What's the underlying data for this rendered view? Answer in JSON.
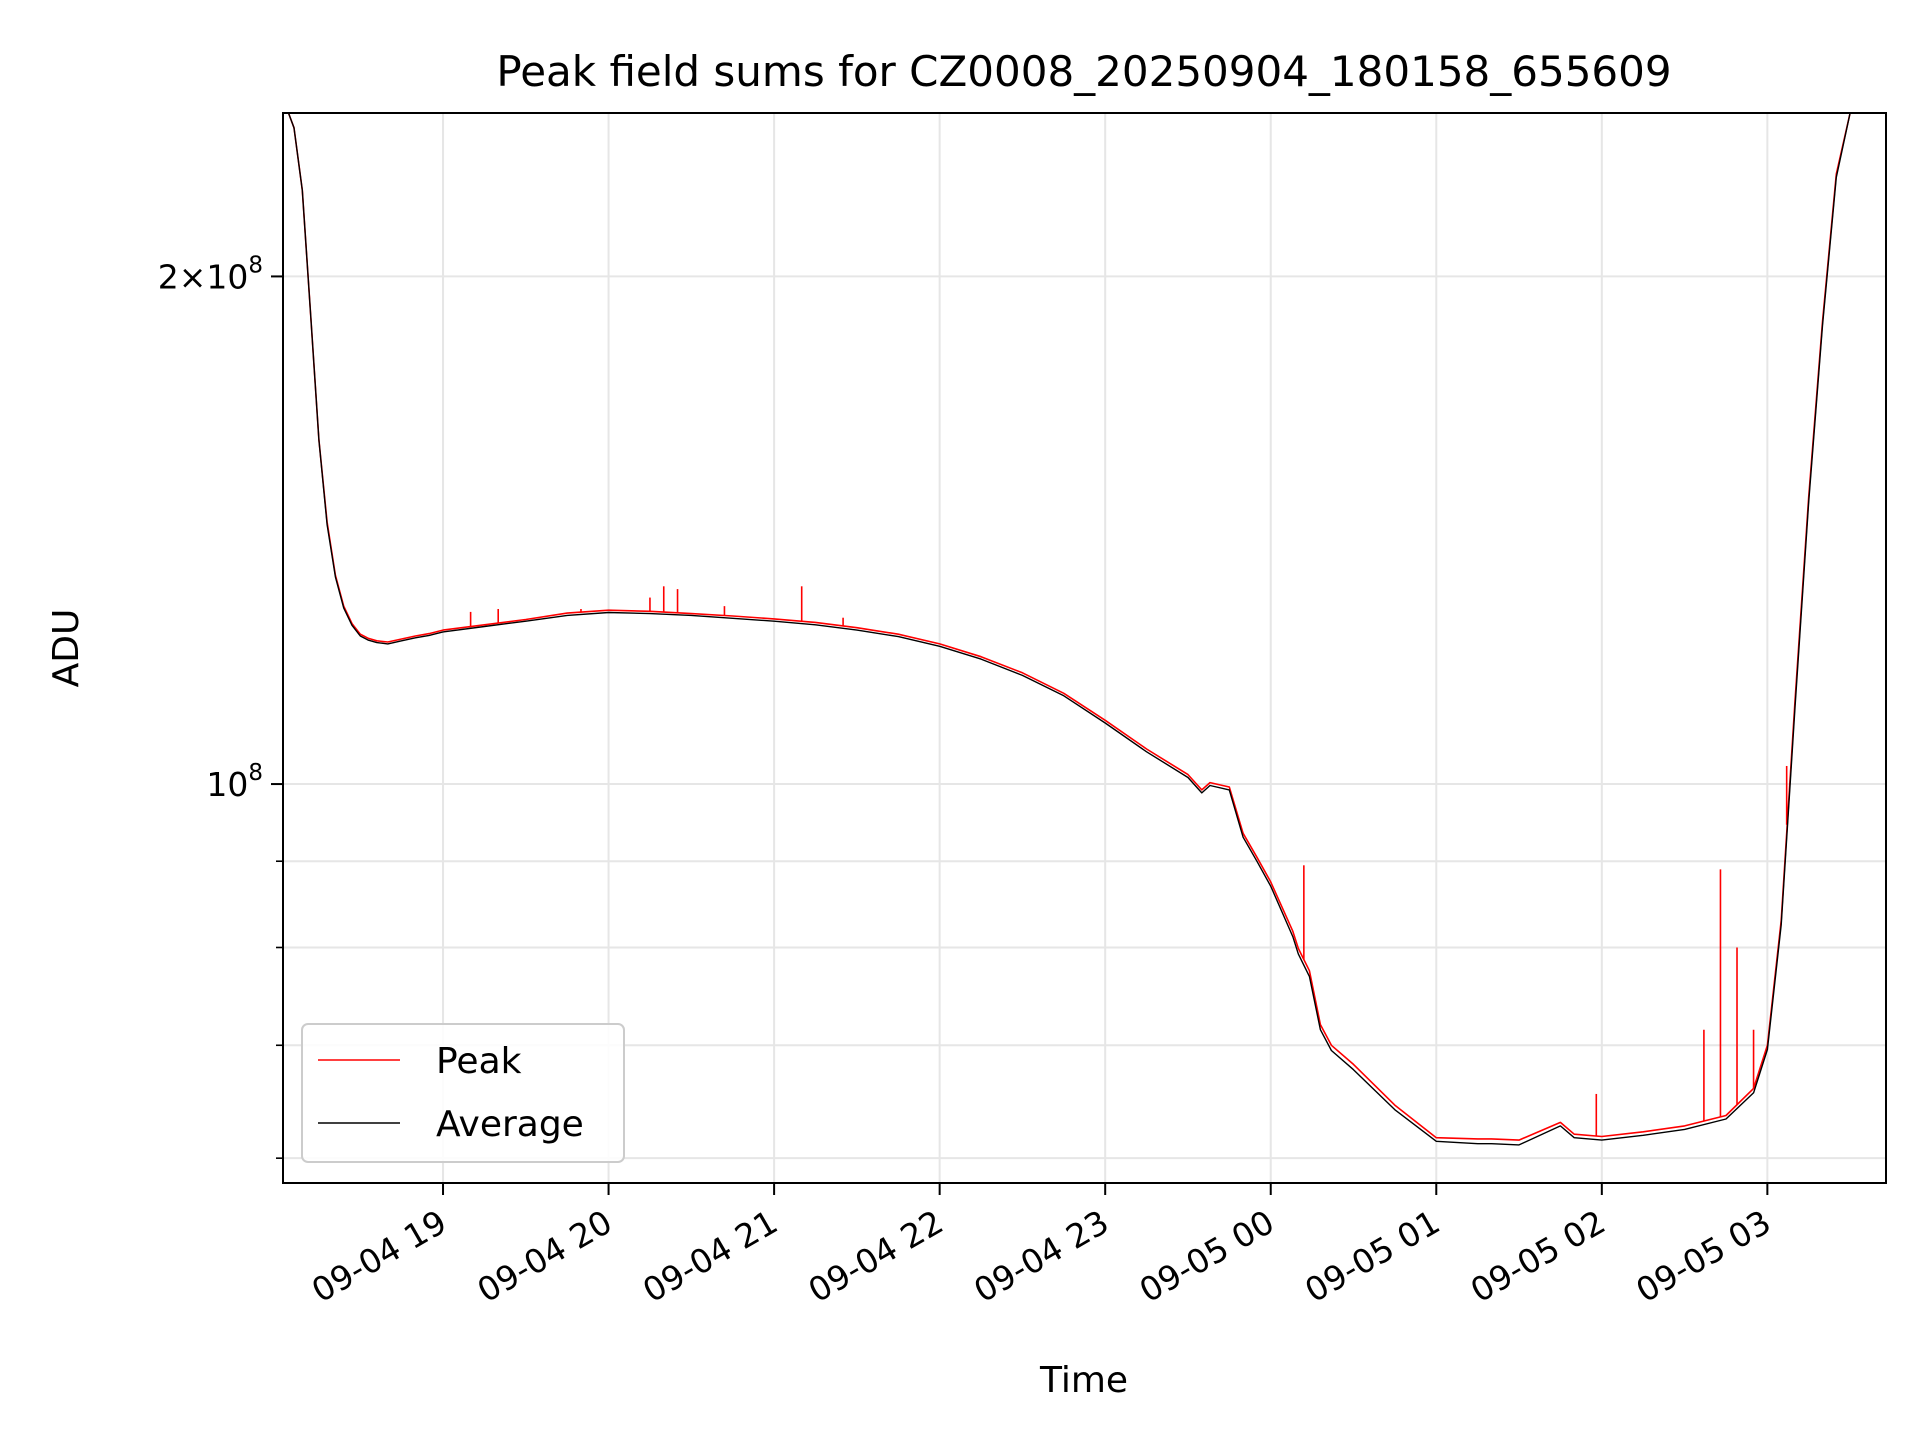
{
  "chart_data": {
    "type": "line",
    "title": "Peak field sums for CZ0008_20250904_180158_655609",
    "xlabel": "Time",
    "ylabel": "ADU",
    "yscale": "log",
    "grid": true,
    "legend_placement": "lower-left",
    "xlim": [
      "2025-09-04 18:02",
      "2025-09-05 03:43"
    ],
    "ylim": [
      58000000,
      250000000
    ],
    "x_ticks": [
      {
        "value": "2025-09-04 19:00",
        "label": "09-04 19"
      },
      {
        "value": "2025-09-04 20:00",
        "label": "09-04 20"
      },
      {
        "value": "2025-09-04 21:00",
        "label": "09-04 21"
      },
      {
        "value": "2025-09-04 22:00",
        "label": "09-04 22"
      },
      {
        "value": "2025-09-04 23:00",
        "label": "09-04 23"
      },
      {
        "value": "2025-09-05 00:00",
        "label": "09-05 00"
      },
      {
        "value": "2025-09-05 01:00",
        "label": "09-05 01"
      },
      {
        "value": "2025-09-05 02:00",
        "label": "09-05 02"
      },
      {
        "value": "2025-09-05 03:00",
        "label": "09-05 03"
      }
    ],
    "y_major_ticks": [
      {
        "value": 100000000,
        "mantissa": "",
        "exponent": "8"
      },
      {
        "value": 200000000,
        "mantissa": "2",
        "exponent": "8"
      }
    ],
    "y_minor_ticks": [
      60000000,
      70000000,
      80000000,
      90000000
    ],
    "series": [
      {
        "name": "Peak",
        "color": "#ff0000",
        "x": [
          "2025-09-04 18:02",
          "2025-09-04 18:04",
          "2025-09-04 18:06",
          "2025-09-04 18:09",
          "2025-09-04 18:12",
          "2025-09-04 18:15",
          "2025-09-04 18:18",
          "2025-09-04 18:21",
          "2025-09-04 18:24",
          "2025-09-04 18:27",
          "2025-09-04 18:30",
          "2025-09-04 18:33",
          "2025-09-04 18:36",
          "2025-09-04 18:40",
          "2025-09-04 18:45",
          "2025-09-04 18:50",
          "2025-09-04 18:55",
          "2025-09-04 19:00",
          "2025-09-04 19:15",
          "2025-09-04 19:30",
          "2025-09-04 19:45",
          "2025-09-04 20:00",
          "2025-09-04 20:15",
          "2025-09-04 20:30",
          "2025-09-04 20:45",
          "2025-09-04 21:00",
          "2025-09-04 21:15",
          "2025-09-04 21:30",
          "2025-09-04 21:45",
          "2025-09-04 22:00",
          "2025-09-04 22:15",
          "2025-09-04 22:30",
          "2025-09-04 22:45",
          "2025-09-04 23:00",
          "2025-09-04 23:15",
          "2025-09-04 23:30",
          "2025-09-04 23:35",
          "2025-09-04 23:38",
          "2025-09-04 23:45",
          "2025-09-04 23:50",
          "2025-09-04 23:55",
          "2025-09-05 00:00",
          "2025-09-05 00:08",
          "2025-09-05 00:10",
          "2025-09-05 00:14",
          "2025-09-05 00:18",
          "2025-09-05 00:22",
          "2025-09-05 00:30",
          "2025-09-05 00:45",
          "2025-09-05 01:00",
          "2025-09-05 01:15",
          "2025-09-05 01:20",
          "2025-09-05 01:30",
          "2025-09-05 01:45",
          "2025-09-05 01:50",
          "2025-09-05 02:00",
          "2025-09-05 02:15",
          "2025-09-05 02:30",
          "2025-09-05 02:45",
          "2025-09-05 02:55",
          "2025-09-05 03:00",
          "2025-09-05 03:05",
          "2025-09-05 03:10",
          "2025-09-05 03:15",
          "2025-09-05 03:20",
          "2025-09-05 03:25",
          "2025-09-05 03:30",
          "2025-09-05 03:35",
          "2025-09-05 03:43"
        ],
        "values": [
          250000000,
          250000000,
          245000000,
          225000000,
          190000000,
          160000000,
          143000000,
          133000000,
          127500000,
          124500000,
          122700000,
          122000000,
          121600000,
          121400000,
          121900000,
          122400000,
          122800000,
          123400000,
          124300000,
          125200000,
          126300000,
          126800000,
          126600000,
          126200000,
          125800000,
          125300000,
          124700000,
          123800000,
          122700000,
          121100000,
          119000000,
          116400000,
          113200000,
          109100000,
          104900000,
          101300000,
          99200000,
          100200000,
          99600000,
          93500000,
          90500000,
          87500000,
          81800000,
          79900000,
          77500000,
          72000000,
          70000000,
          68200000,
          64500000,
          61700000,
          61600000,
          61600000,
          61500000,
          63000000,
          62000000,
          61800000,
          62200000,
          62700000,
          63600000,
          66000000,
          70000000,
          83000000,
          112000000,
          148000000,
          188000000,
          230000000,
          250000000,
          250000000,
          250000000
        ],
        "spikes": [
          {
            "x": "2025-09-04 19:10",
            "value": 126500000
          },
          {
            "x": "2025-09-04 19:20",
            "value": 127000000
          },
          {
            "x": "2025-09-04 19:50",
            "value": 127000000
          },
          {
            "x": "2025-09-04 20:15",
            "value": 129000000
          },
          {
            "x": "2025-09-04 20:20",
            "value": 131000000
          },
          {
            "x": "2025-09-04 20:25",
            "value": 130500000
          },
          {
            "x": "2025-09-04 20:42",
            "value": 127500000
          },
          {
            "x": "2025-09-04 21:10",
            "value": 131000000
          },
          {
            "x": "2025-09-04 21:25",
            "value": 125500000
          },
          {
            "x": "2025-09-05 00:12",
            "value": 89500000
          },
          {
            "x": "2025-09-05 01:58",
            "value": 65500000
          },
          {
            "x": "2025-09-05 02:37",
            "value": 71500000
          },
          {
            "x": "2025-09-05 02:43",
            "value": 89000000
          },
          {
            "x": "2025-09-05 02:49",
            "value": 80000000
          },
          {
            "x": "2025-09-05 02:55",
            "value": 71500000
          },
          {
            "x": "2025-09-05 03:07",
            "value": 102500000
          }
        ]
      },
      {
        "name": "Average",
        "color": "#000000",
        "x": [
          "2025-09-04 18:02",
          "2025-09-04 18:04",
          "2025-09-04 18:06",
          "2025-09-04 18:09",
          "2025-09-04 18:12",
          "2025-09-04 18:15",
          "2025-09-04 18:18",
          "2025-09-04 18:21",
          "2025-09-04 18:24",
          "2025-09-04 18:27",
          "2025-09-04 18:30",
          "2025-09-04 18:33",
          "2025-09-04 18:36",
          "2025-09-04 18:40",
          "2025-09-04 18:45",
          "2025-09-04 18:50",
          "2025-09-04 18:55",
          "2025-09-04 19:00",
          "2025-09-04 19:15",
          "2025-09-04 19:30",
          "2025-09-04 19:45",
          "2025-09-04 20:00",
          "2025-09-04 20:15",
          "2025-09-04 20:30",
          "2025-09-04 20:45",
          "2025-09-04 21:00",
          "2025-09-04 21:15",
          "2025-09-04 21:30",
          "2025-09-04 21:45",
          "2025-09-04 22:00",
          "2025-09-04 22:15",
          "2025-09-04 22:30",
          "2025-09-04 22:45",
          "2025-09-04 23:00",
          "2025-09-04 23:15",
          "2025-09-04 23:30",
          "2025-09-04 23:35",
          "2025-09-04 23:38",
          "2025-09-04 23:45",
          "2025-09-04 23:50",
          "2025-09-04 23:55",
          "2025-09-05 00:00",
          "2025-09-05 00:08",
          "2025-09-05 00:10",
          "2025-09-05 00:14",
          "2025-09-05 00:18",
          "2025-09-05 00:22",
          "2025-09-05 00:30",
          "2025-09-05 00:45",
          "2025-09-05 01:00",
          "2025-09-05 01:15",
          "2025-09-05 01:20",
          "2025-09-05 01:30",
          "2025-09-05 01:45",
          "2025-09-05 01:50",
          "2025-09-05 02:00",
          "2025-09-05 02:15",
          "2025-09-05 02:30",
          "2025-09-05 02:45",
          "2025-09-05 02:55",
          "2025-09-05 03:00",
          "2025-09-05 03:05",
          "2025-09-05 03:10",
          "2025-09-05 03:15",
          "2025-09-05 03:20",
          "2025-09-05 03:25",
          "2025-09-05 03:30",
          "2025-09-05 03:35",
          "2025-09-05 03:43"
        ],
        "values": [
          250000000,
          250000000,
          245000000,
          225000000,
          190000000,
          160000000,
          142500000,
          132700000,
          127200000,
          124200000,
          122400000,
          121700000,
          121300000,
          121100000,
          121600000,
          122100000,
          122500000,
          123100000,
          124000000,
          124900000,
          125900000,
          126400000,
          126200000,
          125900000,
          125400000,
          124900000,
          124300000,
          123400000,
          122300000,
          120700000,
          118600000,
          116000000,
          112800000,
          108700000,
          104500000,
          100900000,
          98800000,
          99800000,
          99200000,
          93000000,
          90000000,
          87000000,
          81200000,
          79300000,
          76900000,
          71500000,
          69500000,
          67700000,
          64100000,
          61400000,
          61200000,
          61200000,
          61100000,
          62700000,
          61700000,
          61500000,
          61900000,
          62400000,
          63300000,
          65600000,
          69600000,
          82500000,
          111000000,
          147000000,
          187000000,
          229000000,
          250000000,
          250000000,
          250000000
        ]
      }
    ]
  }
}
